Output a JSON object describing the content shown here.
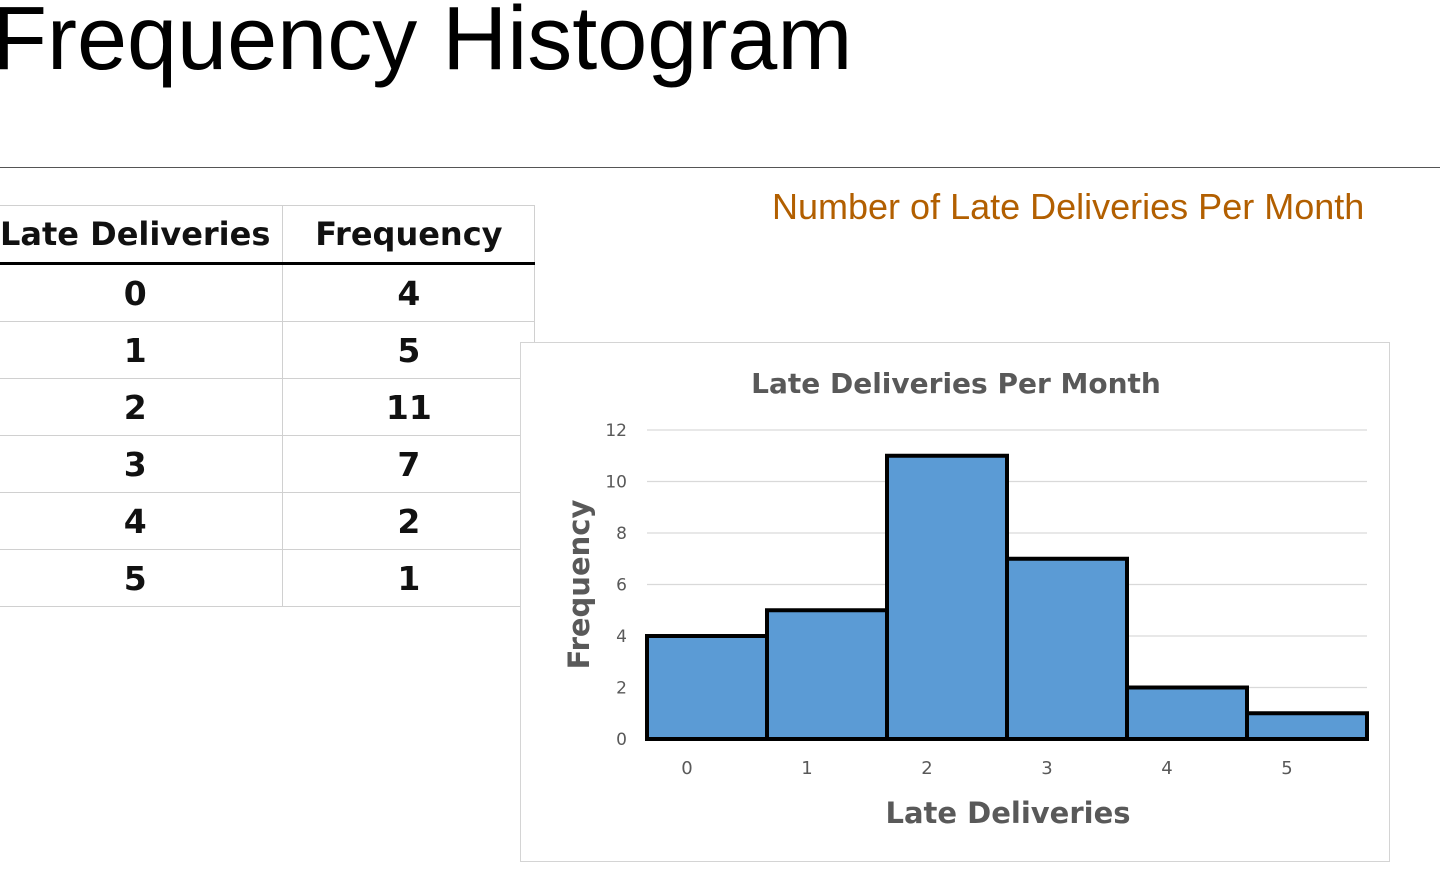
{
  "page": {
    "title": "Frequency Histogram",
    "subtitle": "Number of Late Deliveries Per Month"
  },
  "table": {
    "headers": [
      "Late Deliveries",
      "Frequency"
    ],
    "rows": [
      [
        "0",
        "4"
      ],
      [
        "1",
        "5"
      ],
      [
        "2",
        "11"
      ],
      [
        "3",
        "7"
      ],
      [
        "4",
        "2"
      ],
      [
        "5",
        "1"
      ]
    ]
  },
  "chart_data": {
    "type": "bar",
    "title": "Late Deliveries Per Month",
    "xlabel": "Late Deliveries",
    "ylabel": "Frequency",
    "categories": [
      "0",
      "1",
      "2",
      "3",
      "4",
      "5"
    ],
    "values": [
      4,
      5,
      11,
      7,
      2,
      1
    ],
    "ylim": [
      0,
      12
    ],
    "yticks": [
      0,
      2,
      4,
      6,
      8,
      10,
      12
    ],
    "grid": true,
    "legend": "none",
    "bar_color": "#5b9bd5",
    "bar_edge_color": "#000000"
  }
}
